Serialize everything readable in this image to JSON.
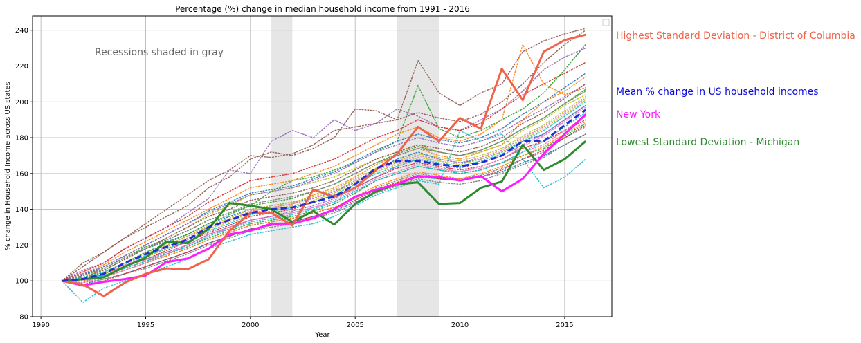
{
  "chart_data": {
    "type": "line",
    "title": "Percentage (%) change in median household income from 1991 - 2016",
    "xlabel": "Year",
    "ylabel": "% change in Household Income across US states",
    "xlim": [
      1989.6,
      2017.25
    ],
    "ylim": [
      80,
      248
    ],
    "xticks": [
      1990,
      1995,
      2000,
      2005,
      2010,
      2015
    ],
    "yticks": [
      80,
      100,
      120,
      140,
      160,
      180,
      200,
      220,
      240
    ],
    "grid": true,
    "recessions": [
      [
        2001,
        2002
      ],
      [
        2007,
        2009
      ]
    ],
    "x": [
      1991,
      1992,
      1993,
      1994,
      1995,
      1996,
      1997,
      1998,
      1999,
      2000,
      2001,
      2002,
      2003,
      2004,
      2005,
      2006,
      2007,
      2008,
      2009,
      2010,
      2011,
      2012,
      2013,
      2014,
      2015,
      2016
    ],
    "highlight_series": [
      {
        "name": "Highest Standard Deviation - District of Columbia",
        "color": "#f0634a",
        "dash": "solid",
        "values": [
          100,
          98,
          91.5,
          99,
          104,
          107,
          106.5,
          112,
          128,
          138,
          138,
          131,
          151,
          147,
          152,
          162,
          171,
          186,
          178,
          191,
          185,
          218.5,
          201,
          228,
          234.5,
          237.5
        ]
      },
      {
        "name": "Mean % change in US household incomes",
        "color": "#1f2fd0",
        "dash": "dashed",
        "values": [
          100,
          101,
          104,
          110,
          115,
          119,
          123,
          130,
          134,
          138,
          140,
          141,
          144,
          147,
          154,
          163,
          167,
          167,
          165,
          164,
          166,
          170,
          178,
          178,
          187,
          195.5
        ]
      },
      {
        "name": "New York",
        "color": "#ff1aff",
        "dash": "solid",
        "values": [
          100,
          97.5,
          99.5,
          101,
          103,
          110.5,
          112.5,
          118,
          126,
          128,
          132,
          132,
          135,
          140,
          147,
          151,
          154,
          158.5,
          158,
          156,
          158.5,
          150,
          157,
          171,
          182,
          193
        ]
      },
      {
        "name": "Lowest Standard Deviation - Michigan",
        "color": "#2f8a2f",
        "dash": "solid",
        "values": [
          100,
          101,
          102,
          108,
          113,
          122,
          121,
          129,
          143.5,
          142,
          140,
          133,
          139,
          131.5,
          143,
          150,
          154,
          155,
          143,
          143.5,
          152,
          155.5,
          176,
          162,
          168,
          178
        ]
      }
    ],
    "background_series": [
      {
        "color": "#1f77b4",
        "values": [
          100,
          104,
          106,
          112,
          118,
          122,
          126,
          132,
          136,
          140,
          142,
          144,
          146,
          150,
          155,
          162,
          168,
          172,
          168,
          166,
          168,
          172,
          178,
          182,
          190,
          198
        ]
      },
      {
        "color": "#ff7f0e",
        "values": [
          100,
          102,
          105,
          110,
          116,
          120,
          125,
          130,
          134,
          139,
          141,
          143,
          148,
          152,
          158,
          165,
          170,
          174,
          170,
          168,
          172,
          176,
          190,
          200,
          206,
          214
        ]
      },
      {
        "color": "#2ca02c",
        "values": [
          100,
          103,
          107,
          113,
          119,
          123,
          128,
          134,
          138,
          142,
          150,
          156,
          158,
          162,
          166,
          172,
          178,
          209,
          185,
          180,
          184,
          190,
          196,
          205,
          218,
          232
        ]
      },
      {
        "color": "#d62728",
        "values": [
          100,
          99,
          104,
          108,
          112,
          117,
          122,
          127,
          131,
          136,
          138,
          140,
          144,
          148,
          152,
          158,
          163,
          166,
          164,
          162,
          164,
          168,
          174,
          178,
          184,
          190
        ]
      },
      {
        "color": "#9467bd",
        "values": [
          100,
          106,
          110,
          118,
          124,
          130,
          138,
          146,
          162,
          160,
          178,
          184,
          180,
          190,
          184,
          188,
          196,
          192,
          186,
          184,
          190,
          196,
          206,
          218,
          225,
          230
        ]
      },
      {
        "color": "#8c564b",
        "values": [
          100,
          108,
          116,
          124,
          130,
          136,
          142,
          152,
          158,
          168,
          172,
          170,
          174,
          180,
          196,
          195,
          190,
          223,
          205,
          198,
          205,
          210,
          228,
          234,
          238,
          241
        ]
      },
      {
        "color": "#e377c2",
        "values": [
          100,
          101,
          103,
          107,
          111,
          116,
          120,
          126,
          129,
          134,
          136,
          138,
          141,
          144,
          150,
          156,
          160,
          164,
          162,
          161,
          163,
          166,
          172,
          176,
          184,
          192
        ]
      },
      {
        "color": "#7f7f7f",
        "values": [
          100,
          100,
          102,
          106,
          110,
          114,
          118,
          123,
          127,
          131,
          133,
          135,
          138,
          141,
          146,
          152,
          156,
          160,
          158,
          157,
          159,
          163,
          168,
          172,
          180,
          186
        ]
      },
      {
        "color": "#bcbd22",
        "values": [
          100,
          103,
          106,
          112,
          118,
          124,
          130,
          137,
          142,
          148,
          150,
          152,
          155,
          158,
          163,
          168,
          172,
          176,
          172,
          170,
          172,
          176,
          184,
          190,
          198,
          204
        ]
      },
      {
        "color": "#17becf",
        "values": [
          100,
          88,
          96,
          100,
          104,
          108,
          112,
          118,
          122,
          126,
          128,
          130,
          132,
          136,
          142,
          148,
          152,
          156,
          154,
          184,
          178,
          182,
          168,
          152,
          158,
          168
        ]
      },
      {
        "color": "#1f77b4",
        "values": [
          100,
          98,
          101,
          104,
          108,
          112,
          116,
          121,
          125,
          129,
          131,
          133,
          136,
          139,
          144,
          150,
          154,
          158,
          157,
          156,
          158,
          161,
          166,
          170,
          176,
          182
        ]
      },
      {
        "color": "#ff7f0e",
        "values": [
          100,
          104,
          109,
          116,
          122,
          128,
          134,
          140,
          146,
          152,
          154,
          156,
          160,
          164,
          170,
          176,
          182,
          186,
          180,
          178,
          182,
          190,
          232,
          210,
          204,
          208
        ]
      },
      {
        "color": "#2ca02c",
        "values": [
          100,
          100,
          103,
          107,
          111,
          115,
          119,
          124,
          128,
          132,
          134,
          136,
          139,
          143,
          149,
          156,
          160,
          164,
          162,
          160,
          162,
          166,
          170,
          174,
          181,
          188
        ]
      },
      {
        "color": "#d62728",
        "values": [
          100,
          105,
          110,
          118,
          124,
          130,
          136,
          144,
          150,
          156,
          158,
          160,
          164,
          168,
          174,
          180,
          184,
          190,
          186,
          184,
          188,
          196,
          204,
          210,
          216,
          222
        ]
      },
      {
        "color": "#9467bd",
        "values": [
          100,
          102,
          104,
          108,
          112,
          116,
          120,
          126,
          130,
          134,
          136,
          139,
          142,
          146,
          152,
          158,
          164,
          168,
          165,
          163,
          166,
          170,
          176,
          182,
          190,
          198
        ]
      },
      {
        "color": "#8c564b",
        "values": [
          100,
          110,
          116,
          124,
          132,
          140,
          148,
          156,
          162,
          170,
          169,
          171,
          176,
          184,
          186,
          188,
          190,
          194,
          191,
          189,
          193,
          200,
          210,
          222,
          232,
          240
        ]
      },
      {
        "color": "#e377c2",
        "values": [
          100,
          101,
          104,
          109,
          114,
          119,
          124,
          130,
          134,
          139,
          141,
          143,
          146,
          150,
          156,
          162,
          166,
          170,
          168,
          166,
          169,
          173,
          180,
          186,
          194,
          202
        ]
      },
      {
        "color": "#7f7f7f",
        "values": [
          100,
          99,
          101,
          104,
          107,
          111,
          115,
          120,
          124,
          128,
          130,
          132,
          135,
          138,
          143,
          149,
          153,
          157,
          155,
          154,
          156,
          160,
          165,
          169,
          176,
          182
        ]
      },
      {
        "color": "#bcbd22",
        "values": [
          100,
          102,
          105,
          110,
          115,
          120,
          125,
          131,
          135,
          140,
          142,
          144,
          147,
          151,
          157,
          163,
          167,
          171,
          169,
          167,
          170,
          174,
          181,
          187,
          195,
          203
        ]
      },
      {
        "color": "#17becf",
        "values": [
          100,
          101,
          103,
          107,
          111,
          115,
          119,
          125,
          129,
          133,
          135,
          137,
          140,
          144,
          150,
          156,
          160,
          164,
          162,
          160,
          162,
          166,
          172,
          178,
          186,
          194
        ]
      },
      {
        "color": "#1f77b4",
        "values": [
          100,
          103,
          108,
          114,
          120,
          126,
          132,
          139,
          144,
          149,
          151,
          153,
          157,
          161,
          167,
          173,
          178,
          182,
          179,
          177,
          180,
          185,
          193,
          200,
          208,
          216
        ]
      },
      {
        "color": "#ff7f0e",
        "values": [
          100,
          100,
          102,
          106,
          110,
          114,
          118,
          123,
          127,
          131,
          133,
          135,
          138,
          141,
          147,
          153,
          157,
          161,
          159,
          157,
          160,
          164,
          170,
          175,
          182,
          189
        ]
      },
      {
        "color": "#2ca02c",
        "values": [
          100,
          101,
          105,
          110,
          116,
          121,
          126,
          132,
          137,
          142,
          144,
          146,
          150,
          154,
          160,
          166,
          171,
          175,
          172,
          170,
          173,
          178,
          185,
          191,
          199,
          207
        ]
      },
      {
        "color": "#d62728",
        "values": [
          100,
          97,
          100,
          104,
          108,
          112,
          116,
          121,
          125,
          129,
          131,
          133,
          136,
          140,
          145,
          151,
          155,
          159,
          157,
          156,
          158,
          162,
          168,
          173,
          180,
          187
        ]
      },
      {
        "color": "#9467bd",
        "values": [
          100,
          104,
          108,
          114,
          120,
          126,
          132,
          138,
          143,
          148,
          150,
          152,
          156,
          160,
          166,
          172,
          176,
          180,
          177,
          175,
          178,
          183,
          190,
          196,
          203,
          210
        ]
      },
      {
        "color": "#8c564b",
        "values": [
          100,
          102,
          106,
          112,
          118,
          124,
          130,
          136,
          140,
          145,
          147,
          149,
          152,
          156,
          162,
          168,
          172,
          176,
          174,
          172,
          175,
          180,
          188,
          194,
          202,
          210
        ]
      },
      {
        "color": "#e377c2",
        "values": [
          100,
          99,
          102,
          106,
          110,
          115,
          120,
          126,
          130,
          134,
          136,
          138,
          141,
          145,
          151,
          157,
          161,
          165,
          163,
          161,
          164,
          168,
          175,
          181,
          189,
          197
        ]
      },
      {
        "color": "#7f7f7f",
        "values": [
          100,
          103,
          107,
          113,
          118,
          123,
          128,
          134,
          138,
          143,
          145,
          147,
          150,
          154,
          160,
          166,
          170,
          174,
          172,
          170,
          173,
          178,
          185,
          191,
          199,
          206
        ]
      },
      {
        "color": "#bcbd22",
        "values": [
          100,
          101,
          104,
          108,
          113,
          118,
          123,
          129,
          133,
          138,
          140,
          142,
          145,
          149,
          155,
          161,
          165,
          169,
          167,
          165,
          168,
          172,
          179,
          185,
          193,
          201
        ]
      },
      {
        "color": "#17becf",
        "values": [
          100,
          102,
          105,
          110,
          114,
          118,
          122,
          128,
          132,
          137,
          139,
          141,
          144,
          148,
          154,
          160,
          164,
          168,
          166,
          164,
          167,
          171,
          178,
          184,
          192,
          200
        ]
      }
    ]
  },
  "legend": {
    "visible": true,
    "placement": "top-right",
    "entries": []
  },
  "annotations": {
    "recession_note": "Recessions shaded in gray",
    "highest": "Highest Standard Deviation - District of Columbia",
    "mean": "Mean % change in US household incomes",
    "new_york": "New York",
    "lowest": "Lowest Standard Deviation - Michigan"
  },
  "colors": {
    "highest": "#f0634a",
    "mean": "#0a0ae0",
    "new_york": "#ff1aff",
    "lowest": "#2f8a2f",
    "recession_shade": "#e6e6e6"
  }
}
